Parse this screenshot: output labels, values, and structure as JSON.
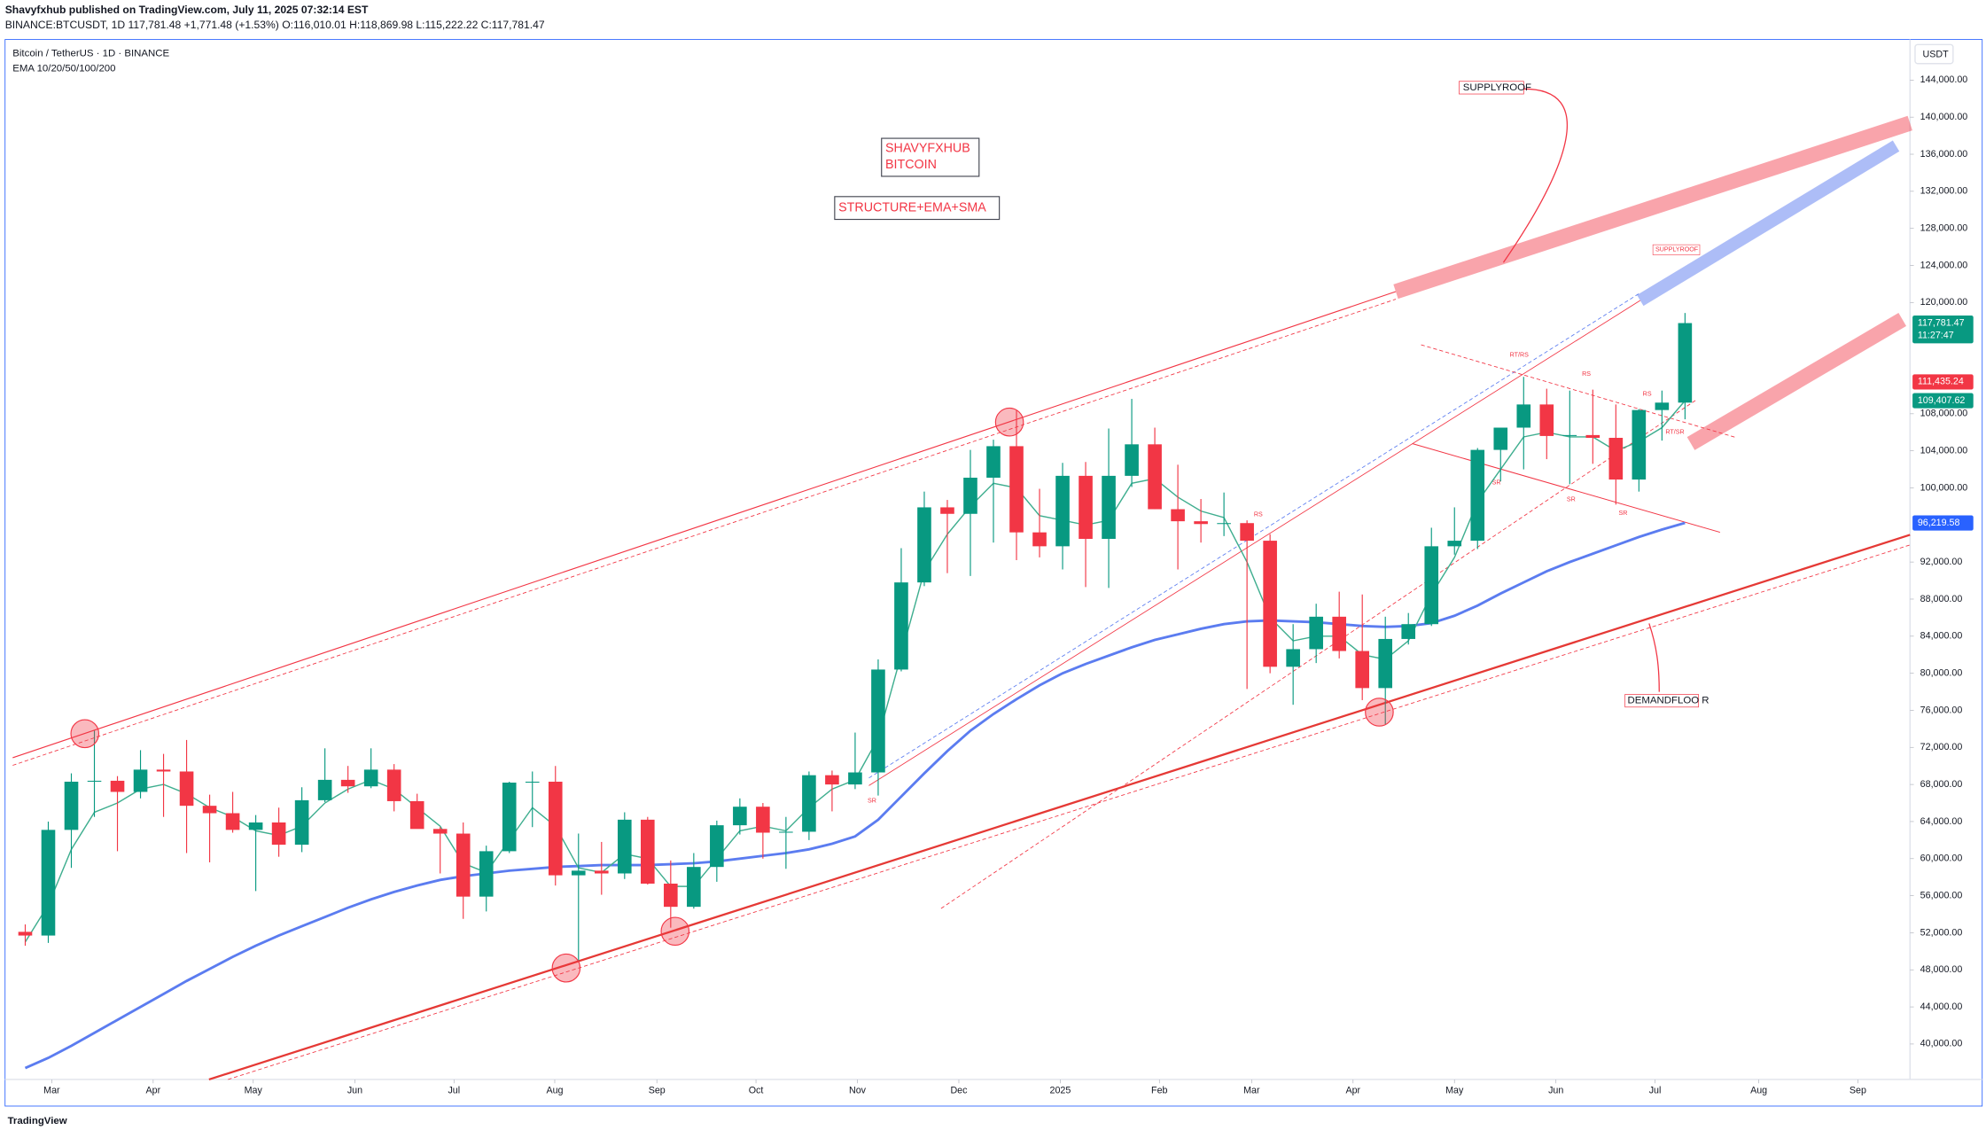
{
  "header": {
    "publisher": "Shavyfxhub published on TradingView.com, July 11, 2025 07:32:14 EST",
    "symbol_line": "BINANCE:BTCUSDT, 1D  117,781.48  +1,771.48 (+1.53%)  O:116,010.01  H:118,869.98  L:115,222.22  C:117,781.47",
    "legend_title": "Bitcoin / TetherUS · 1D · BINANCE",
    "legend_indicator": "EMA 10/20/50/100/200",
    "currency": "USDT",
    "footer": "TradingView"
  },
  "annotations": [
    "SHAVYFXHUB",
    "BITCOIN",
    "STRUCTURE+EMA+SMA",
    "SUPPLYROOF",
    "SUPPLYROOF",
    "DEMANDFLOO R",
    "RT/RS",
    "RS",
    "RS",
    "RT/SR",
    "SR",
    "SR",
    "SR",
    "RS",
    "SR"
  ],
  "chart_data": {
    "type": "candlestick",
    "up_color": "#089981",
    "down_color": "#f23645",
    "xlim": [
      -0.82,
      81.76
    ],
    "xticks": [
      {
        "value": 1.15,
        "label": "Mar"
      },
      {
        "value": 5.55,
        "label": "Apr"
      },
      {
        "value": 9.89,
        "label": "May"
      },
      {
        "value": 14.3,
        "label": "Jun"
      },
      {
        "value": 18.6,
        "label": "Jul"
      },
      {
        "value": 22.97,
        "label": "Aug"
      },
      {
        "value": 27.4,
        "label": "Sep"
      },
      {
        "value": 31.7,
        "label": "Oct"
      },
      {
        "value": 36.1,
        "label": "Nov"
      },
      {
        "value": 40.5,
        "label": "Dec"
      },
      {
        "value": 44.9,
        "label": "2025"
      },
      {
        "value": 49.2,
        "label": "Feb"
      },
      {
        "value": 53.2,
        "label": "Mar"
      },
      {
        "value": 57.6,
        "label": "Apr"
      },
      {
        "value": 62.0,
        "label": "May"
      },
      {
        "value": 66.4,
        "label": "Jun"
      },
      {
        "value": 70.7,
        "label": "Jul"
      },
      {
        "value": 75.2,
        "label": "Aug"
      },
      {
        "value": 79.5,
        "label": "Sep"
      }
    ],
    "ylim": [
      36170,
      148240
    ],
    "yticks": [
      {
        "value": 40000,
        "label": "40,000.00"
      },
      {
        "value": 44000,
        "label": "44,000.00"
      },
      {
        "value": 48000,
        "label": "48,000.00"
      },
      {
        "value": 52000,
        "label": "52,000.00"
      },
      {
        "value": 56000,
        "label": "56,000.00"
      },
      {
        "value": 60000,
        "label": "60,000.00"
      },
      {
        "value": 64000,
        "label": "64,000.00"
      },
      {
        "value": 68000,
        "label": "68,000.00"
      },
      {
        "value": 72000,
        "label": "72,000.00"
      },
      {
        "value": 76000,
        "label": "76,000.00"
      },
      {
        "value": 80000,
        "label": "80,000.00"
      },
      {
        "value": 84000,
        "label": "84,000.00"
      },
      {
        "value": 88000,
        "label": "88,000.00"
      },
      {
        "value": 92000,
        "label": "92,000.00"
      },
      {
        "value": 100000,
        "label": "100,000.00"
      },
      {
        "value": 104000,
        "label": "104,000.00"
      },
      {
        "value": 108000,
        "label": "108,000.00"
      },
      {
        "value": 120000,
        "label": "120,000.00"
      },
      {
        "value": 124000,
        "label": "124,000.00"
      },
      {
        "value": 128000,
        "label": "128,000.00"
      },
      {
        "value": 132000,
        "label": "132,000.00"
      },
      {
        "value": 136000,
        "label": "136,000.00"
      },
      {
        "value": 140000,
        "label": "140,000.00"
      },
      {
        "value": 144000,
        "label": "144,000.00"
      }
    ],
    "open": [
      52100,
      51700,
      63100,
      68300,
      68400,
      67200,
      69600,
      69400,
      65700,
      64900,
      63100,
      63900,
      61500,
      66300,
      68500,
      67800,
      69600,
      66200,
      63200,
      62700,
      55900,
      60800,
      68200,
      68300,
      58200,
      58700,
      58400,
      64200,
      57300,
      54800,
      59100,
      63600,
      65600,
      62800,
      62900,
      69000,
      68000,
      69300,
      80400,
      89800,
      97900,
      97200,
      101100,
      104500,
      95200,
      93700,
      101300,
      94500,
      101300,
      104700,
      97700,
      96400,
      96100,
      96200,
      94300,
      80700,
      82600,
      86100,
      82400,
      78400,
      83700,
      85300,
      93700,
      94300,
      104100,
      106500,
      109000,
      105600,
      105700,
      105400,
      100900,
      108400,
      109200
    ],
    "high": [
      52900,
      64000,
      69200,
      73800,
      68900,
      71700,
      71300,
      72800,
      66900,
      67200,
      64700,
      65500,
      67700,
      71900,
      70000,
      71900,
      70200,
      67000,
      63400,
      63900,
      61400,
      68300,
      69400,
      70000,
      62700,
      61800,
      65000,
      64500,
      59800,
      60600,
      64100,
      66500,
      66000,
      64500,
      69400,
      69500,
      73600,
      81500,
      93500,
      99600,
      98700,
      104100,
      105200,
      108350,
      99900,
      102700,
      102800,
      106400,
      109600,
      106500,
      102500,
      98800,
      99500,
      96500,
      95000,
      85300,
      87500,
      88800,
      88500,
      86100,
      86500,
      95700,
      97900,
      104300,
      105800,
      111980,
      110700,
      110500,
      110600,
      109000,
      108500,
      110500,
      118869.98
    ],
    "low": [
      50600,
      50900,
      59000,
      64500,
      60800,
      66500,
      64500,
      60600,
      59600,
      62800,
      56500,
      60200,
      60700,
      66100,
      67100,
      67600,
      65100,
      63400,
      58400,
      53500,
      54300,
      60600,
      63400,
      57100,
      49000,
      56100,
      57800,
      57200,
      52550,
      54600,
      57500,
      62600,
      60000,
      58900,
      62000,
      65100,
      67500,
      66800,
      80200,
      89400,
      90800,
      90500,
      94100,
      92200,
      92500,
      91200,
      89300,
      89200,
      100100,
      97700,
      91200,
      94100,
      94800,
      78300,
      80000,
      76600,
      81100,
      81600,
      77100,
      74500,
      83100,
      85100,
      92800,
      93400,
      100700,
      102000,
      103100,
      100400,
      102600,
      98200,
      99600,
      105100,
      107400
    ],
    "close": [
      51700,
      63100,
      68300,
      68400,
      67200,
      69600,
      69400,
      65700,
      64900,
      63100,
      63900,
      61500,
      66300,
      68500,
      67800,
      69600,
      66200,
      63200,
      62700,
      55900,
      60800,
      68200,
      68300,
      58200,
      58700,
      58400,
      64200,
      57300,
      54800,
      59100,
      63600,
      65600,
      62800,
      62900,
      69000,
      68000,
      69300,
      80400,
      89800,
      97900,
      97200,
      101100,
      104500,
      95200,
      93700,
      101300,
      94500,
      101300,
      104700,
      97700,
      96400,
      96100,
      96200,
      94300,
      80700,
      82600,
      86100,
      82400,
      78400,
      83700,
      85300,
      93700,
      94300,
      104100,
      106500,
      109000,
      105600,
      105700,
      105400,
      100900,
      108400,
      109200,
      117781.47
    ],
    "series": [
      {
        "color": "#5b7cf0",
        "values": [
          37400,
          38500,
          39800,
          41200,
          42600,
          44000,
          45400,
          46800,
          48100,
          49400,
          50600,
          51700,
          52700,
          53700,
          54700,
          55600,
          56400,
          57100,
          57700,
          58100,
          58400,
          58700,
          58900,
          59100,
          59200,
          59300,
          59300,
          59300,
          59400,
          59500,
          59700,
          60000,
          60300,
          60600,
          61000,
          61600,
          62400,
          64200,
          66700,
          69200,
          71600,
          73800,
          75600,
          77200,
          78700,
          80000,
          81000,
          81900,
          82800,
          83600,
          84200,
          84800,
          85300,
          85600,
          85700,
          85600,
          85500,
          85300,
          85100,
          85000,
          85100,
          85400,
          86200,
          87300,
          88600,
          89800,
          91000,
          92000,
          92900,
          93800,
          94700,
          95500,
          96219.58
        ]
      },
      {
        "color": "#3fae8f",
        "values": [
          51000,
          55000,
          61000,
          65000,
          66000,
          67500,
          68000,
          67000,
          65500,
          64500,
          63000,
          62500,
          63500,
          66000,
          67500,
          68500,
          67500,
          65500,
          63500,
          59500,
          58500,
          62000,
          65500,
          63500,
          59000,
          58500,
          60500,
          60000,
          57000,
          57000,
          60000,
          63000,
          63500,
          63000,
          65500,
          67500,
          68500,
          73000,
          82000,
          91000,
          95000,
          98000,
          100500,
          100000,
          97000,
          96500,
          96000,
          96500,
          100500,
          101000,
          99000,
          97500,
          96800,
          92000,
          86000,
          83500,
          84000,
          84000,
          82000,
          81500,
          83500,
          88500,
          92500,
          98500,
          102000,
          105500,
          106000,
          105500,
          105500,
          104000,
          105000,
          106500,
          109407.62
        ]
      }
    ],
    "price_badges": [
      {
        "value": 117781.47,
        "label": "117,781.47",
        "time": "11:27:47",
        "color": "#089981"
      },
      {
        "value": 111435.24,
        "label": "111,435.24",
        "color": "#f23645"
      },
      {
        "value": 109407.62,
        "label": "109,407.62",
        "color": "#089981"
      },
      {
        "value": 96219.58,
        "label": "96,219.58",
        "color": "#2962ff"
      }
    ]
  }
}
